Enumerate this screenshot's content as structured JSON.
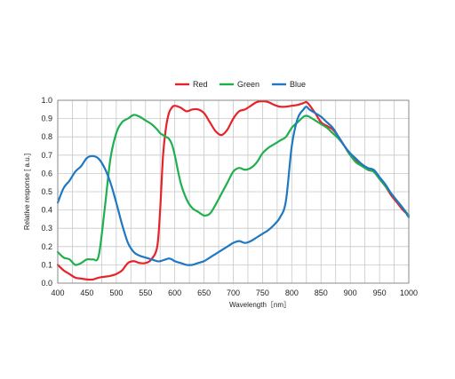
{
  "chart_data": {
    "type": "line",
    "title": "",
    "xlabel": "Wavelength［nm］",
    "ylabel": "Relative response [ a.u.]",
    "xlim": [
      400,
      1000
    ],
    "ylim": [
      0,
      1.0
    ],
    "xticks": [
      "400",
      "450",
      "500",
      "550",
      "600",
      "650",
      "700",
      "750",
      "800",
      "850",
      "900",
      "950",
      "1000"
    ],
    "yticks": [
      "0.0",
      "0.1",
      "0.2",
      "0.3",
      "0.4",
      "0.5",
      "0.6",
      "0.7",
      "0.8",
      "0.9",
      "1.0"
    ],
    "x_grid_step": 25,
    "y_grid_step": 0.1,
    "grid": true,
    "legend_position": "top-center",
    "x": [
      400,
      410,
      420,
      430,
      440,
      450,
      460,
      470,
      480,
      490,
      500,
      510,
      520,
      530,
      540,
      550,
      560,
      570,
      575,
      580,
      585,
      590,
      595,
      600,
      610,
      620,
      630,
      640,
      650,
      660,
      670,
      680,
      690,
      700,
      710,
      720,
      730,
      740,
      750,
      760,
      770,
      780,
      790,
      800,
      810,
      820,
      825,
      830,
      840,
      850,
      860,
      870,
      880,
      890,
      900,
      910,
      920,
      930,
      940,
      950,
      960,
      970,
      980,
      990,
      1000
    ],
    "series": [
      {
        "name": "Red",
        "color": "#e8222a",
        "values": [
          0.1,
          0.07,
          0.05,
          0.03,
          0.025,
          0.02,
          0.02,
          0.03,
          0.035,
          0.04,
          0.05,
          0.07,
          0.11,
          0.12,
          0.11,
          0.11,
          0.13,
          0.2,
          0.4,
          0.7,
          0.85,
          0.93,
          0.96,
          0.97,
          0.96,
          0.94,
          0.95,
          0.95,
          0.93,
          0.88,
          0.83,
          0.81,
          0.84,
          0.9,
          0.94,
          0.95,
          0.97,
          0.99,
          0.995,
          0.99,
          0.975,
          0.965,
          0.965,
          0.97,
          0.975,
          0.985,
          0.99,
          0.975,
          0.93,
          0.88,
          0.86,
          0.84,
          0.8,
          0.75,
          0.7,
          0.67,
          0.65,
          0.62,
          0.61,
          0.57,
          0.53,
          0.48,
          0.44,
          0.4,
          0.37
        ]
      },
      {
        "name": "Green",
        "color": "#1fb04e",
        "values": [
          0.17,
          0.14,
          0.13,
          0.1,
          0.11,
          0.13,
          0.13,
          0.15,
          0.4,
          0.68,
          0.82,
          0.88,
          0.9,
          0.92,
          0.91,
          0.89,
          0.87,
          0.84,
          0.82,
          0.81,
          0.8,
          0.79,
          0.76,
          0.7,
          0.55,
          0.46,
          0.41,
          0.39,
          0.37,
          0.38,
          0.43,
          0.49,
          0.55,
          0.61,
          0.63,
          0.62,
          0.63,
          0.66,
          0.71,
          0.74,
          0.76,
          0.78,
          0.8,
          0.85,
          0.88,
          0.91,
          0.915,
          0.91,
          0.89,
          0.87,
          0.85,
          0.82,
          0.79,
          0.75,
          0.7,
          0.66,
          0.64,
          0.62,
          0.61,
          0.57,
          0.53,
          0.49,
          0.45,
          0.41,
          0.37
        ]
      },
      {
        "name": "Blue",
        "color": "#1f78c1",
        "values": [
          0.44,
          0.52,
          0.56,
          0.61,
          0.64,
          0.685,
          0.695,
          0.68,
          0.63,
          0.55,
          0.44,
          0.32,
          0.22,
          0.17,
          0.15,
          0.14,
          0.13,
          0.12,
          0.12,
          0.125,
          0.13,
          0.135,
          0.13,
          0.12,
          0.11,
          0.1,
          0.1,
          0.11,
          0.12,
          0.14,
          0.16,
          0.18,
          0.2,
          0.22,
          0.23,
          0.22,
          0.23,
          0.25,
          0.27,
          0.29,
          0.32,
          0.36,
          0.45,
          0.75,
          0.9,
          0.95,
          0.965,
          0.95,
          0.93,
          0.91,
          0.88,
          0.85,
          0.8,
          0.75,
          0.71,
          0.68,
          0.65,
          0.63,
          0.62,
          0.58,
          0.54,
          0.49,
          0.45,
          0.41,
          0.36
        ]
      }
    ]
  }
}
